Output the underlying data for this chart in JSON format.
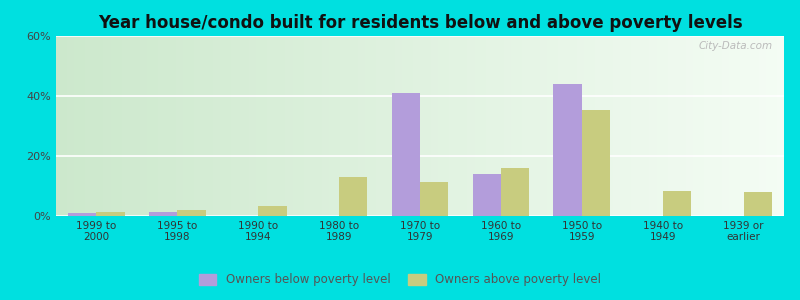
{
  "title": "Year house/condo built for residents below and above poverty levels",
  "categories": [
    "1999 to\n2000",
    "1995 to\n1998",
    "1990 to\n1994",
    "1980 to\n1989",
    "1970 to\n1979",
    "1960 to\n1969",
    "1950 to\n1959",
    "1940 to\n1949",
    "1939 or\nearlier"
  ],
  "below_poverty": [
    1.0,
    1.5,
    0.0,
    0.0,
    41.0,
    14.0,
    44.0,
    0.0,
    0.0
  ],
  "above_poverty": [
    1.5,
    2.0,
    3.5,
    13.0,
    11.5,
    16.0,
    35.5,
    8.5,
    8.0
  ],
  "below_color": "#b39ddb",
  "above_color": "#c8cc7f",
  "ylim": [
    0,
    60
  ],
  "yticks": [
    0,
    20,
    40,
    60
  ],
  "ytick_labels": [
    "0%",
    "20%",
    "40%",
    "60%"
  ],
  "outer_bg": "#00e0e0",
  "title_fontsize": 12,
  "legend_below_label": "Owners below poverty level",
  "legend_above_label": "Owners above poverty level",
  "watermark": "City-Data.com"
}
